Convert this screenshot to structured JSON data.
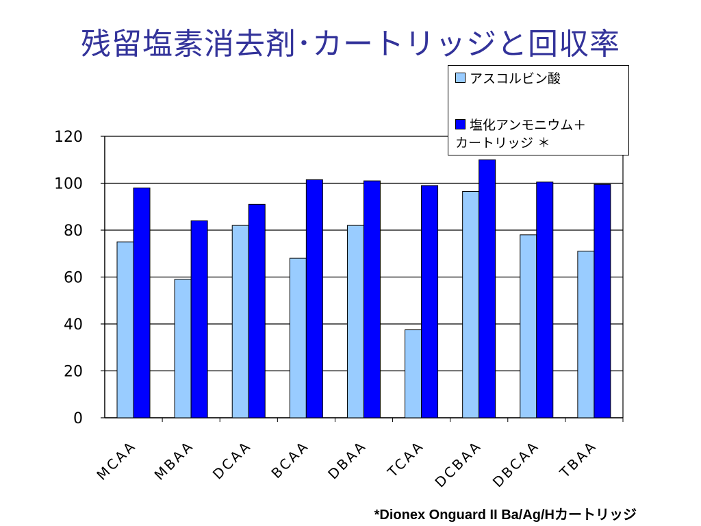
{
  "title": "残留塩素消去剤･カートリッジと回収率",
  "footnote": "*Dionex Onguard II Ba/Ag/Hカートリッジ",
  "chart_data": {
    "type": "bar",
    "categories": [
      "MCAA",
      "MBAA",
      "DCAA",
      "BCAA",
      "DBAA",
      "TCAA",
      "DCBAA",
      "DBCAA",
      "TBAA"
    ],
    "series": [
      {
        "name": "アスコルビン酸",
        "color": "#99ccff",
        "values": [
          75,
          59,
          82,
          68,
          82,
          37.5,
          96.5,
          78,
          71
        ]
      },
      {
        "name": "塩化アンモニウム＋\nカートリッジ ＊",
        "color": "#0000ff",
        "values": [
          98,
          84,
          91,
          101.5,
          101,
          99,
          110,
          100.5,
          99.5
        ]
      }
    ],
    "ylim": [
      0,
      120
    ],
    "yticks": [
      "0",
      "20",
      "40",
      "60",
      "80",
      "100",
      "120"
    ],
    "grid": true,
    "legend_position": "top-right",
    "xlabel": "",
    "ylabel": ""
  }
}
